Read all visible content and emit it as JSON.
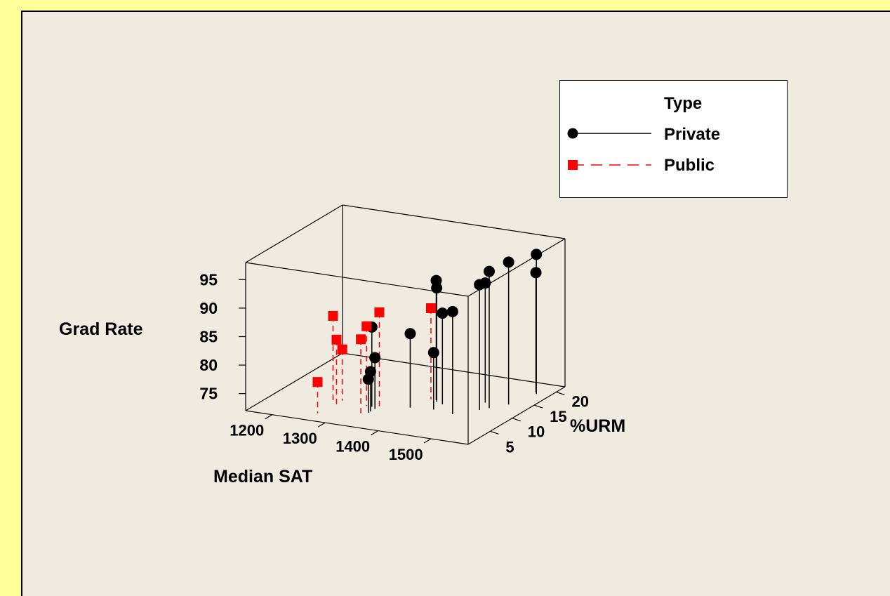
{
  "chart_data": {
    "type": "scatter",
    "subtype": "3d-scatter-with-drop-lines",
    "title": "",
    "xlabel": "Median SAT",
    "ylabel": "%URM",
    "zlabel": "Grad Rate",
    "x_ticks": [
      "1200",
      "1300",
      "1400",
      "1500"
    ],
    "y_ticks": [
      "5",
      "10",
      "15",
      "20"
    ],
    "z_ticks": [
      "75",
      "80",
      "85",
      "90",
      "95"
    ],
    "xlim": [
      1150,
      1570
    ],
    "ylim": [
      0,
      22
    ],
    "zlim": [
      72,
      98
    ],
    "legend": {
      "title": "Type",
      "position": "top-right",
      "entries": [
        {
          "label": "Private",
          "line": "solid",
          "marker": "circle",
          "color": "#000000"
        },
        {
          "label": "Public",
          "line": "dashed",
          "marker": "square",
          "color": "#FF0000"
        }
      ]
    },
    "series": [
      {
        "name": "Private",
        "color": "#000000",
        "marker": "circle",
        "line": "solid",
        "points": [
          {
            "sat": 1330,
            "urm": 7.0,
            "grad": 86.0
          },
          {
            "sat": 1340,
            "urm": 6.5,
            "grad": 81.0
          },
          {
            "sat": 1340,
            "urm": 5.5,
            "grad": 79.0
          },
          {
            "sat": 1340,
            "urm": 5.0,
            "grad": 77.9
          },
          {
            "sat": 1390,
            "urm": 8.5,
            "grad": 85.0
          },
          {
            "sat": 1410,
            "urm": 12.0,
            "grad": 93.0
          },
          {
            "sat": 1415,
            "urm": 11.5,
            "grad": 92.0
          },
          {
            "sat": 1430,
            "urm": 9.0,
            "grad": 82.0
          },
          {
            "sat": 1430,
            "urm": 11.0,
            "grad": 88.0
          },
          {
            "sat": 1470,
            "urm": 8.5,
            "grad": 90.0
          },
          {
            "sat": 1490,
            "urm": 13.5,
            "grad": 93.0
          },
          {
            "sat": 1500,
            "urm": 11.0,
            "grad": 94.0
          },
          {
            "sat": 1510,
            "urm": 12.0,
            "grad": 96.0
          },
          {
            "sat": 1530,
            "urm": 14.0,
            "grad": 97.0
          },
          {
            "sat": 1545,
            "urm": 18.5,
            "grad": 96.5
          },
          {
            "sat": 1540,
            "urm": 19.0,
            "grad": 93.0
          }
        ]
      },
      {
        "name": "Public",
        "color": "#FF0000",
        "marker": "square",
        "line": "dashed",
        "points": [
          {
            "sat": 1265,
            "urm": 6.0,
            "grad": 87.5
          },
          {
            "sat": 1280,
            "urm": 5.0,
            "grad": 84.0
          },
          {
            "sat": 1270,
            "urm": 7.5,
            "grad": 81.0
          },
          {
            "sat": 1265,
            "urm": 2.5,
            "grad": 77.5
          },
          {
            "sat": 1320,
            "urm": 7.0,
            "grad": 86.0
          },
          {
            "sat": 1330,
            "urm": 4.5,
            "grad": 85.0
          },
          {
            "sat": 1340,
            "urm": 7.5,
            "grad": 88.5
          },
          {
            "sat": 1400,
            "urm": 12.0,
            "grad": 88.0
          }
        ]
      }
    ]
  }
}
